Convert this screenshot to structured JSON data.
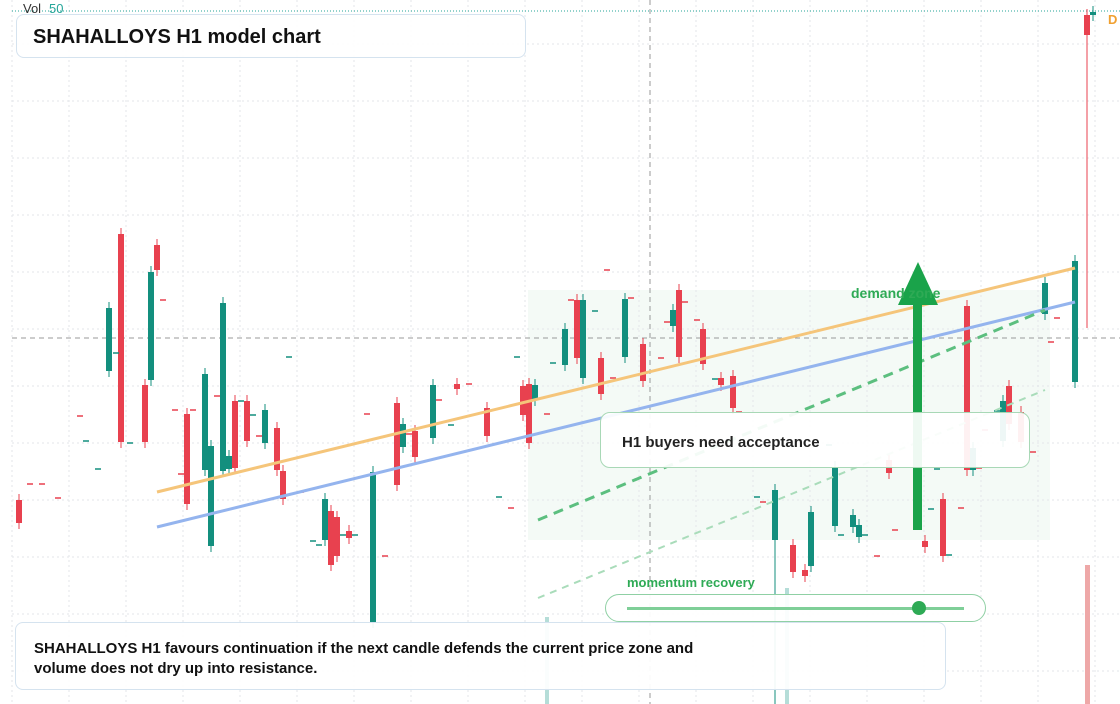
{
  "header": {
    "vol_label": "Vol",
    "vol_value": "50",
    "title": "SHAHALLOYS H1 model chart",
    "badge": "D"
  },
  "annotations": {
    "zone": "demand zone",
    "callout": "H1 buyers need acceptance",
    "momentum": "momentum recovery"
  },
  "footer": {
    "note": "SHAHALLOYS H1 favours continuation if the next candle defends the current price zone and volume does not dry up into resistance."
  }
}
